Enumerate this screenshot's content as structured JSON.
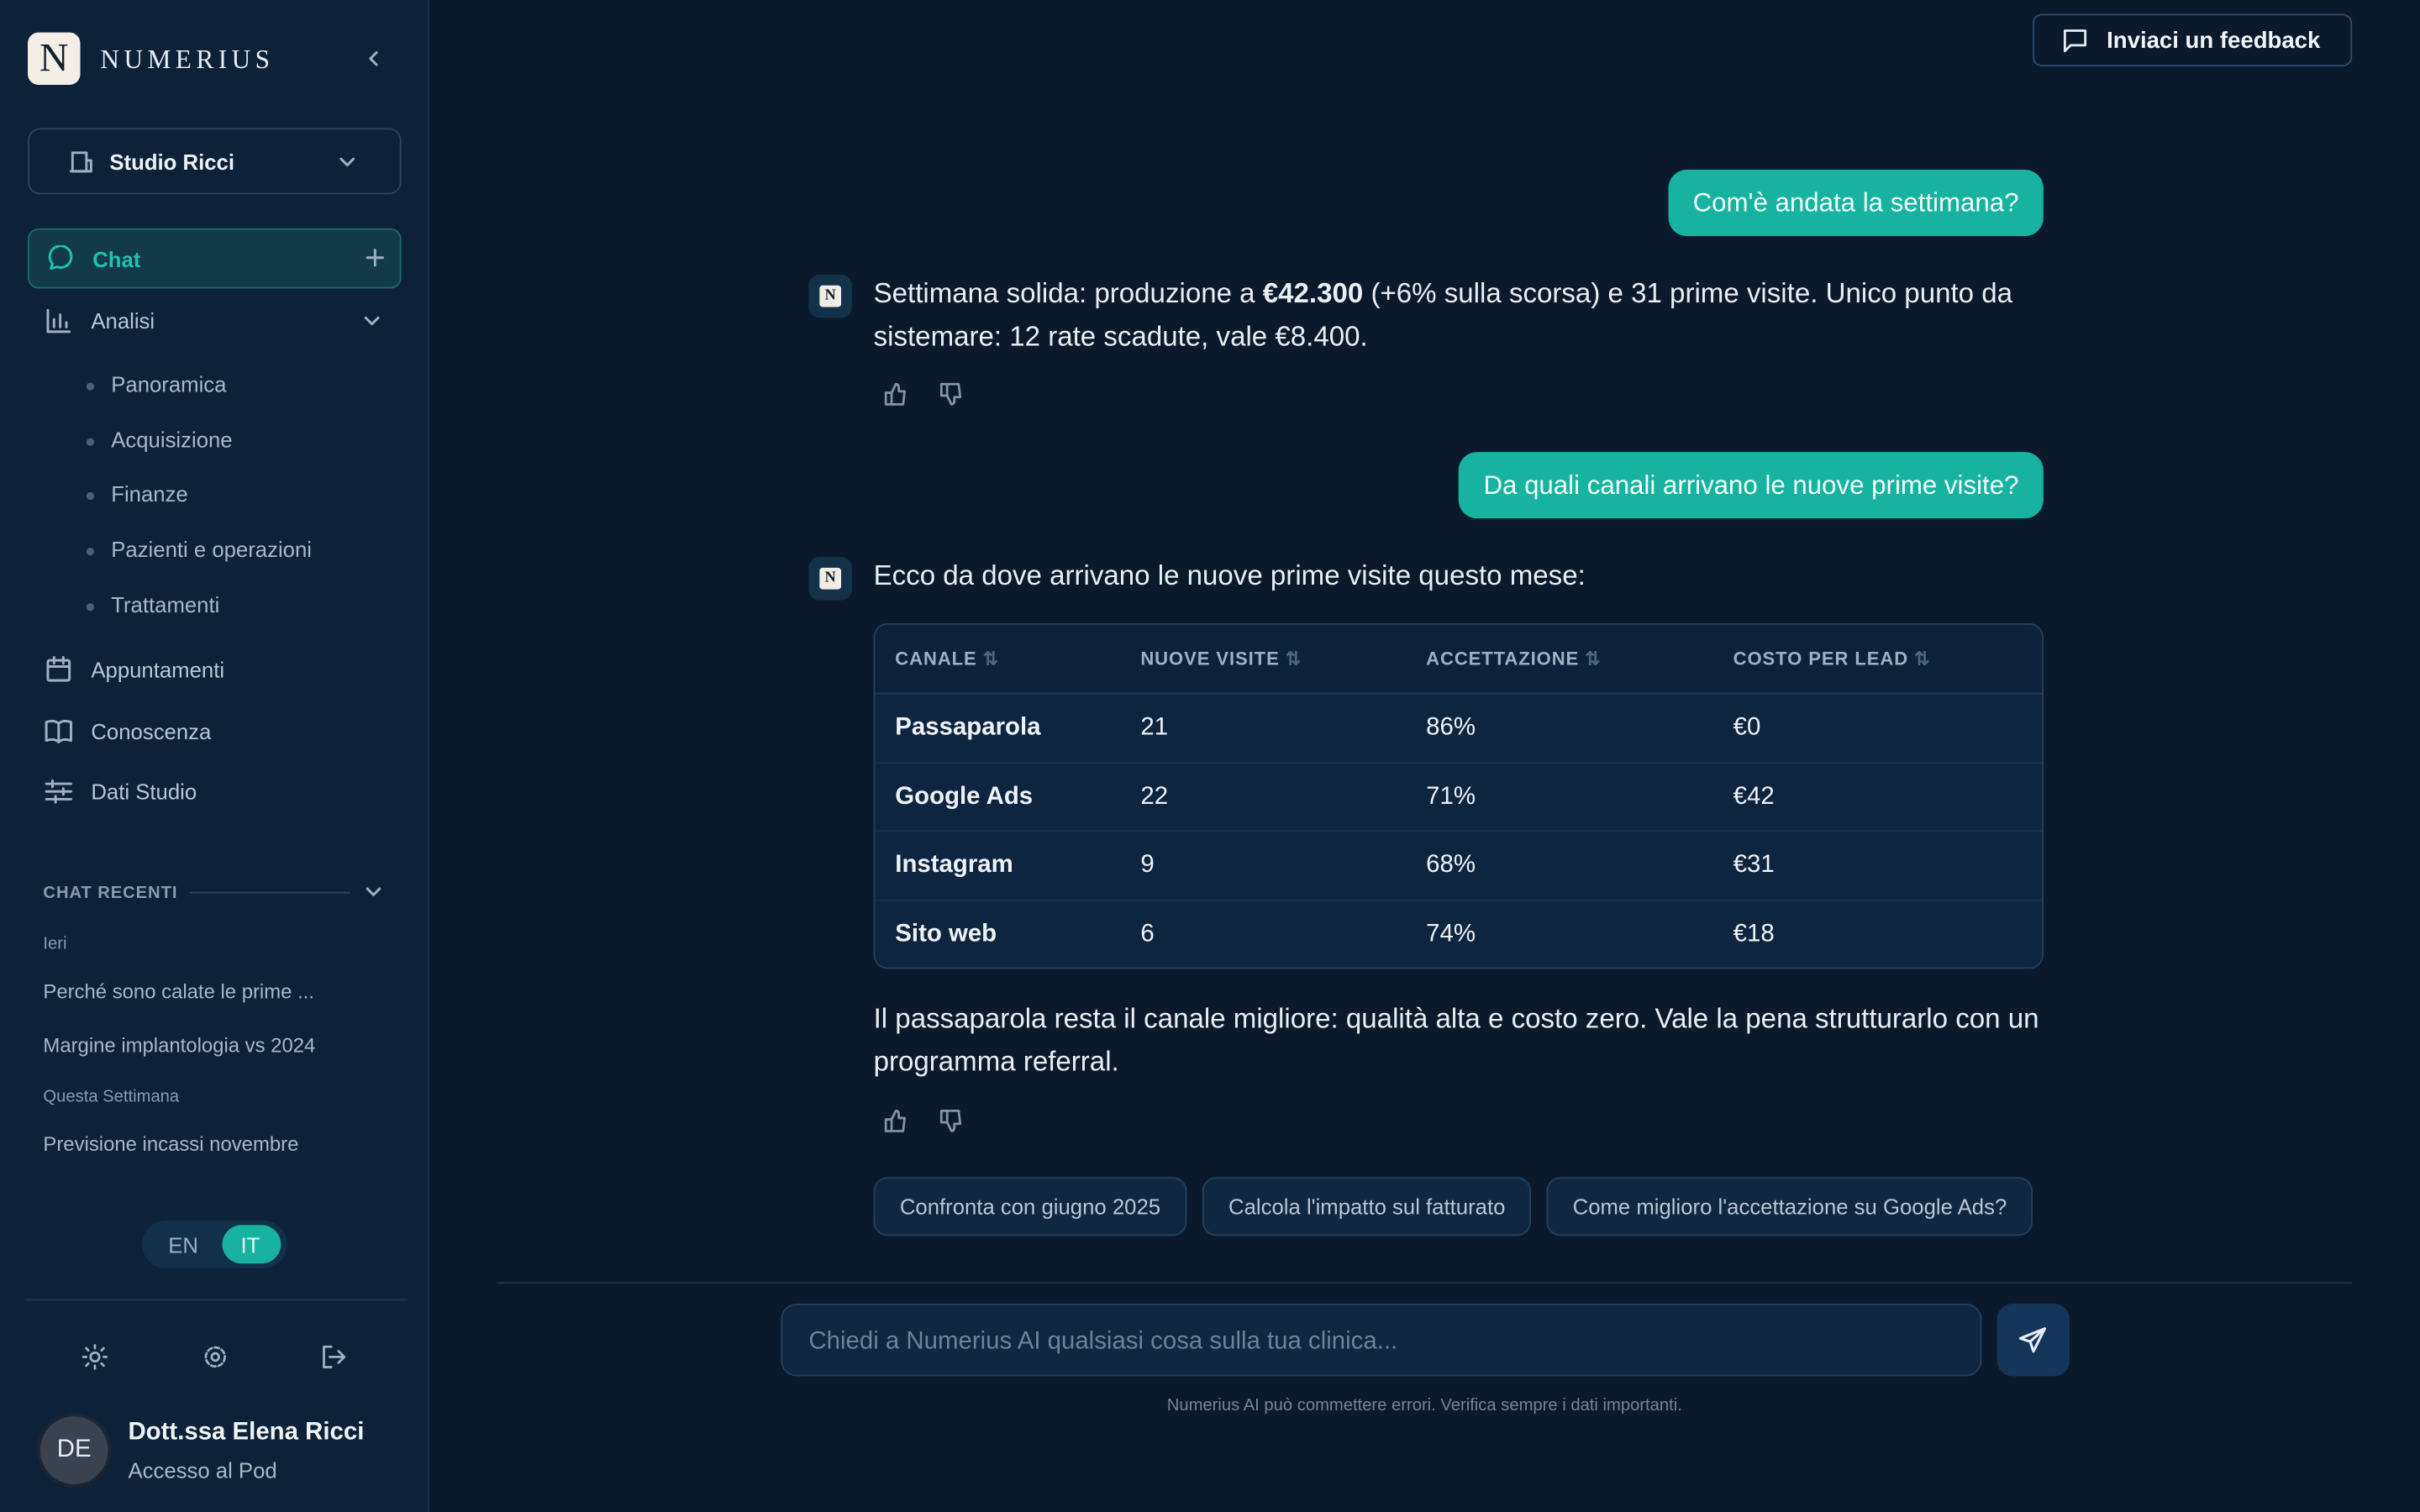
{
  "sidebar": {
    "logo": "N",
    "brand": "NUMERIUS",
    "workspace": "Studio Ricci",
    "nav": {
      "chat": "Chat",
      "analisi": "Analisi",
      "analisi_items": [
        "Panoramica",
        "Acquisizione",
        "Finanze",
        "Pazienti e operazioni",
        "Trattamenti"
      ],
      "appuntamenti": "Appuntamenti",
      "conoscenza": "Conoscenza",
      "dati_studio": "Dati Studio"
    },
    "recent": {
      "title": "CHAT RECENTI",
      "groups": [
        {
          "label": "Ieri",
          "items": [
            "Perché sono calate le prime ...",
            "Margine implantologia vs 2024"
          ]
        },
        {
          "label": "Questa Settimana",
          "items": [
            "Previsione incassi novembre"
          ]
        }
      ]
    },
    "languages": [
      "EN",
      "IT"
    ],
    "user": {
      "initials": "DE",
      "name": "Dott.ssa Elena Ricci",
      "role": "Accesso al Pod"
    }
  },
  "header": {
    "feedback": "Inviaci un feedback"
  },
  "messages": [
    {
      "role": "user",
      "text": "Com'è andata la settimana?"
    },
    {
      "role": "assistant",
      "avatar": "N",
      "text_before": "Settimana solida: produzione a ",
      "text_bold": "€42.300",
      "text_after": " (+6% sulla scorsa) e 31 prime visite. Unico punto da sistemare: 12 rate scadute, vale €8.400."
    },
    {
      "role": "user",
      "text": "Da quali canali arrivano le nuove prime visite?"
    },
    {
      "role": "assistant",
      "avatar": "N",
      "text": "Ecco da dove arrivano le nuove prime visite questo mese:",
      "text_after_table": "Il passaparola resta il canale migliore: qualità alta e costo zero. Vale la pena strutturarlo con un programma referral."
    }
  ],
  "table": {
    "columns": [
      "CANALE",
      "NUOVE VISITE",
      "ACCETTAZIONE",
      "COSTO PER LEAD"
    ],
    "rows": [
      [
        "Passaparola",
        "21",
        "86%",
        "€0"
      ],
      [
        "Google Ads",
        "22",
        "71%",
        "€42"
      ],
      [
        "Instagram",
        "9",
        "68%",
        "€31"
      ],
      [
        "Sito web",
        "6",
        "74%",
        "€18"
      ]
    ]
  },
  "suggestions": [
    "Confronta con giugno 2025",
    "Calcola l'impatto sul fatturato",
    "Come miglioro l'accettazione su Google Ads?"
  ],
  "input": {
    "placeholder": "Chiedi a Numerius AI qualsiasi cosa sulla tua clinica...",
    "disclaimer": "Numerius AI può commettere errori. Verifica sempre i dati importanti."
  }
}
